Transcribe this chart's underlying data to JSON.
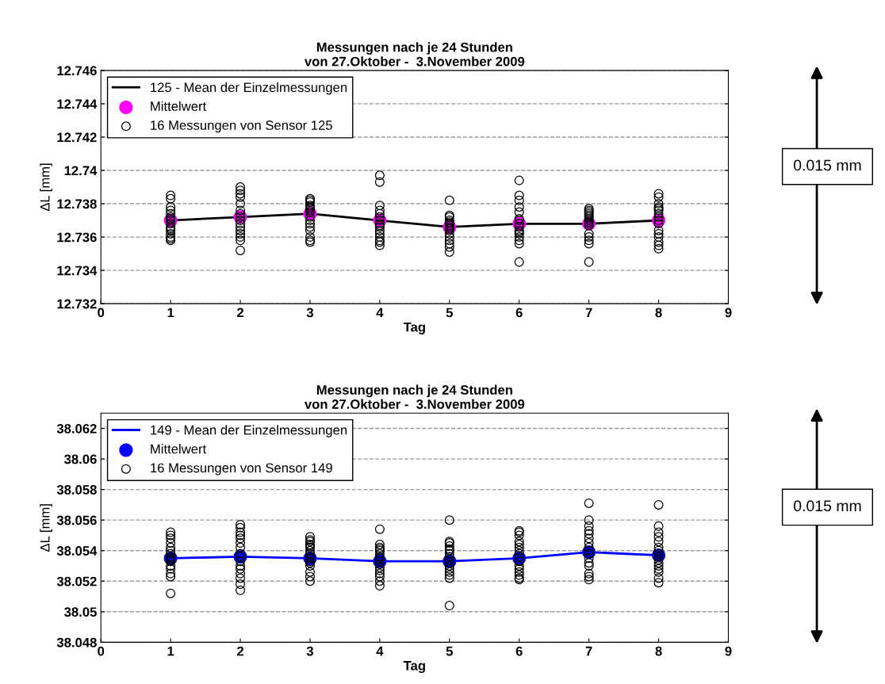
{
  "chart_data": [
    {
      "type": "scatter",
      "title": "Messungen nach je 24 Stunden\nvon 27.Oktober -  3.November 2009",
      "xlabel": "Tag",
      "ylabel": "ΔL [mm]",
      "xlim": [
        0,
        9
      ],
      "xticks": [
        0,
        1,
        2,
        3,
        4,
        5,
        6,
        7,
        8,
        9
      ],
      "ylim": [
        12.732,
        12.746
      ],
      "yticks": [
        12.732,
        12.734,
        12.736,
        12.738,
        12.74,
        12.742,
        12.744,
        12.746
      ],
      "grid": "y",
      "legend": "top left",
      "annotations": [
        "0.015 mm"
      ],
      "series": [
        {
          "name": "125 - Mean der Einzelmessungen",
          "type": "line",
          "color": "#000000",
          "marker": "none",
          "x": [
            1,
            2,
            3,
            4,
            5,
            6,
            7,
            8
          ],
          "values": [
            12.737,
            12.7372,
            12.7374,
            12.737,
            12.7366,
            12.7368,
            12.7368,
            12.737
          ]
        },
        {
          "name": "Mittelwert",
          "color": "#ff00ff",
          "marker": "circle",
          "x": [
            1,
            2,
            3,
            4,
            5,
            6,
            7,
            8
          ],
          "values": [
            12.737,
            12.7372,
            12.7374,
            12.737,
            12.7366,
            12.7368,
            12.7368,
            12.737
          ]
        },
        {
          "name": "16 Messungen von Sensor 125",
          "color": "#000000",
          "marker": "circle",
          "x": [
            1,
            1,
            1,
            1,
            1,
            1,
            1,
            1,
            1,
            1,
            1,
            1,
            1,
            1,
            1,
            1,
            2,
            2,
            2,
            2,
            2,
            2,
            2,
            2,
            2,
            2,
            2,
            2,
            2,
            2,
            2,
            2,
            3,
            3,
            3,
            3,
            3,
            3,
            3,
            3,
            3,
            3,
            3,
            3,
            3,
            3,
            3,
            3,
            4,
            4,
            4,
            4,
            4,
            4,
            4,
            4,
            4,
            4,
            4,
            4,
            4,
            4,
            4,
            4,
            5,
            5,
            5,
            5,
            5,
            5,
            5,
            5,
            5,
            5,
            5,
            5,
            5,
            5,
            5,
            5,
            6,
            6,
            6,
            6,
            6,
            6,
            6,
            6,
            6,
            6,
            6,
            6,
            6,
            6,
            6,
            6,
            7,
            7,
            7,
            7,
            7,
            7,
            7,
            7,
            7,
            7,
            7,
            7,
            7,
            7,
            7,
            7,
            8,
            8,
            8,
            8,
            8,
            8,
            8,
            8,
            8,
            8,
            8,
            8,
            8,
            8,
            8,
            8
          ],
          "values": [
            12.7385,
            12.7383,
            12.7378,
            12.7376,
            12.7374,
            12.7372,
            12.7371,
            12.737,
            12.7368,
            12.7366,
            12.7365,
            12.7364,
            12.7362,
            12.736,
            12.7359,
            12.7358,
            12.739,
            12.7388,
            12.7386,
            12.7384,
            12.738,
            12.7376,
            12.7374,
            12.7372,
            12.737,
            12.7368,
            12.7366,
            12.7364,
            12.7362,
            12.736,
            12.7358,
            12.7352,
            12.7383,
            12.7382,
            12.7381,
            12.7379,
            12.7378,
            12.7377,
            12.7376,
            12.7375,
            12.7372,
            12.737,
            12.7368,
            12.7366,
            12.7364,
            12.736,
            12.7358,
            12.7357,
            12.7397,
            12.7393,
            12.7379,
            12.7376,
            12.7374,
            12.7372,
            12.737,
            12.7368,
            12.7367,
            12.7366,
            12.7364,
            12.7362,
            12.736,
            12.7358,
            12.7357,
            12.7355,
            12.7382,
            12.7373,
            12.7372,
            12.737,
            12.7369,
            12.7368,
            12.7367,
            12.7366,
            12.7365,
            12.7364,
            12.7362,
            12.736,
            12.7358,
            12.7356,
            12.7354,
            12.7351,
            12.7394,
            12.7385,
            12.7382,
            12.7378,
            12.7375,
            12.7371,
            12.737,
            12.7368,
            12.7366,
            12.7364,
            12.7363,
            12.7362,
            12.736,
            12.7358,
            12.7356,
            12.7345,
            12.7377,
            12.7376,
            12.7375,
            12.7374,
            12.7373,
            12.7372,
            12.7371,
            12.737,
            12.7369,
            12.7368,
            12.7367,
            12.7362,
            12.736,
            12.7358,
            12.7356,
            12.7345,
            12.7386,
            12.7384,
            12.738,
            12.7378,
            12.7377,
            12.7376,
            12.7374,
            12.7372,
            12.737,
            12.7368,
            12.7364,
            12.7362,
            12.736,
            12.7357,
            12.7355,
            12.7353
          ]
        }
      ]
    },
    {
      "type": "scatter",
      "title": "Messungen nach je 24 Stunden\nvon 27.Oktober -  3.November 2009",
      "xlabel": "Tag",
      "ylabel": "ΔL [mm]",
      "xlim": [
        0,
        9
      ],
      "xticks": [
        0,
        1,
        2,
        3,
        4,
        5,
        6,
        7,
        8,
        9
      ],
      "ylim": [
        38.048,
        38.063
      ],
      "yticks": [
        38.048,
        38.05,
        38.052,
        38.054,
        38.056,
        38.058,
        38.06,
        38.062
      ],
      "grid": "y",
      "legend": "top left",
      "annotations": [
        "0.015 mm"
      ],
      "series": [
        {
          "name": "149 - Mean der Einzelmessungen",
          "type": "line",
          "color": "#0000ff",
          "marker": "none",
          "x": [
            1,
            2,
            3,
            4,
            5,
            6,
            7,
            8
          ],
          "values": [
            38.0535,
            38.0536,
            38.0535,
            38.0533,
            38.0533,
            38.0535,
            38.0539,
            38.0537
          ]
        },
        {
          "name": "Mittelwert",
          "color": "#0000ff",
          "marker": "circle",
          "x": [
            1,
            2,
            3,
            4,
            5,
            6,
            7,
            8
          ],
          "values": [
            38.0535,
            38.0536,
            38.0535,
            38.0533,
            38.0533,
            38.0535,
            38.0539,
            38.0537
          ]
        },
        {
          "name": "16 Messungen von Sensor 149",
          "color": "#000000",
          "marker": "circle",
          "x": [
            1,
            1,
            1,
            1,
            1,
            1,
            1,
            1,
            1,
            1,
            1,
            1,
            1,
            1,
            1,
            1,
            2,
            2,
            2,
            2,
            2,
            2,
            2,
            2,
            2,
            2,
            2,
            2,
            2,
            2,
            2,
            2,
            3,
            3,
            3,
            3,
            3,
            3,
            3,
            3,
            3,
            3,
            3,
            3,
            3,
            3,
            3,
            3,
            4,
            4,
            4,
            4,
            4,
            4,
            4,
            4,
            4,
            4,
            4,
            4,
            4,
            4,
            4,
            4,
            5,
            5,
            5,
            5,
            5,
            5,
            5,
            5,
            5,
            5,
            5,
            5,
            5,
            5,
            5,
            5,
            6,
            6,
            6,
            6,
            6,
            6,
            6,
            6,
            6,
            6,
            6,
            6,
            6,
            6,
            6,
            6,
            7,
            7,
            7,
            7,
            7,
            7,
            7,
            7,
            7,
            7,
            7,
            7,
            7,
            7,
            7,
            7,
            8,
            8,
            8,
            8,
            8,
            8,
            8,
            8,
            8,
            8,
            8,
            8,
            8,
            8,
            8,
            8
          ],
          "values": [
            38.0552,
            38.055,
            38.0548,
            38.0545,
            38.0542,
            38.054,
            38.0538,
            38.0536,
            38.0535,
            38.0534,
            38.0533,
            38.053,
            38.0528,
            38.0525,
            38.0523,
            38.0512,
            38.0557,
            38.0555,
            38.0552,
            38.055,
            38.0548,
            38.0545,
            38.0542,
            38.0538,
            38.0536,
            38.0533,
            38.053,
            38.0528,
            38.0525,
            38.0522,
            38.0518,
            38.0514,
            38.0549,
            38.0547,
            38.0546,
            38.0544,
            38.0543,
            38.0542,
            38.054,
            38.0538,
            38.0536,
            38.0535,
            38.0533,
            38.0532,
            38.053,
            38.0526,
            38.0523,
            38.052,
            38.0554,
            38.0544,
            38.0542,
            38.0541,
            38.054,
            38.0538,
            38.0536,
            38.0535,
            38.0533,
            38.0531,
            38.0529,
            38.0527,
            38.0525,
            38.0523,
            38.052,
            38.0517,
            38.056,
            38.0546,
            38.0545,
            38.0543,
            38.0541,
            38.054,
            38.0538,
            38.0536,
            38.0534,
            38.0532,
            38.053,
            38.0528,
            38.0526,
            38.0524,
            38.0522,
            38.0504,
            38.0553,
            38.0552,
            38.055,
            38.0546,
            38.0544,
            38.0542,
            38.054,
            38.0538,
            38.0536,
            38.0533,
            38.053,
            38.0528,
            38.0526,
            38.0524,
            38.0522,
            38.0521,
            38.0571,
            38.056,
            38.0556,
            38.0553,
            38.0551,
            38.0548,
            38.0545,
            38.0542,
            38.054,
            38.0538,
            38.0535,
            38.0532,
            38.053,
            38.0525,
            38.0523,
            38.0521,
            38.057,
            38.0556,
            38.0552,
            38.0549,
            38.0546,
            38.0542,
            38.054,
            38.0538,
            38.0536,
            38.0534,
            38.0532,
            38.053,
            38.0528,
            38.0526,
            38.0522,
            38.0519
          ]
        }
      ]
    }
  ]
}
